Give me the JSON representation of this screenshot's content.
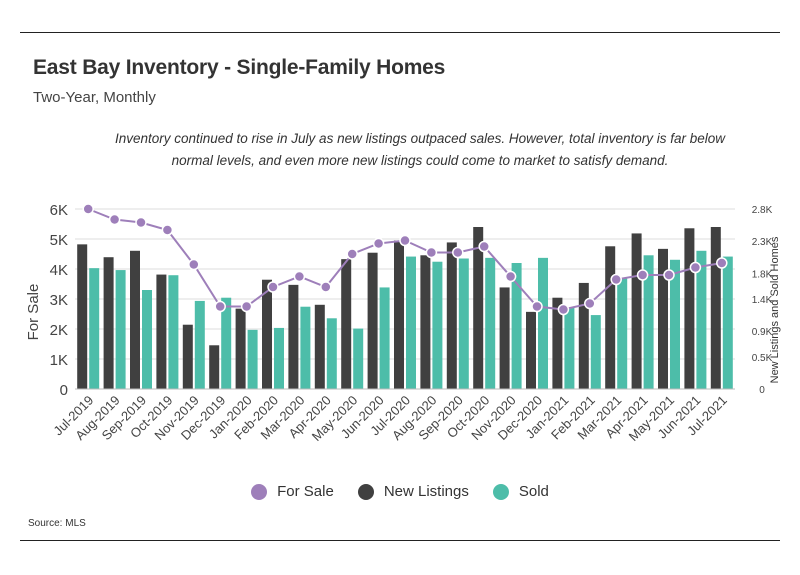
{
  "header": {
    "title": "East Bay Inventory - Single-Family Homes",
    "subtitle": "Two-Year, Monthly",
    "note": "Inventory continued to rise in July as new listings outpaced sales. However, total inventory is far below normal levels, and even more new listings could come to market to satisfy demand."
  },
  "footer": {
    "source": "Source:  MLS"
  },
  "colors": {
    "for_sale": "#9e7fba",
    "new_listings": "#404040",
    "sold": "#4dbda9",
    "grid": "#dddddd"
  },
  "chart_data": {
    "type": "bar",
    "categories": [
      "Jul-2019",
      "Aug-2019",
      "Sep-2019",
      "Oct-2019",
      "Nov-2019",
      "Dec-2019",
      "Jan-2020",
      "Feb-2020",
      "Mar-2020",
      "Apr-2020",
      "May-2020",
      "Jun-2020",
      "Jul-2020",
      "Aug-2020",
      "Sep-2020",
      "Oct-2020",
      "Nov-2020",
      "Dec-2020",
      "Jan-2021",
      "Feb-2021",
      "Mar-2021",
      "Apr-2021",
      "May-2021",
      "Jun-2021",
      "Jul-2021"
    ],
    "left_axis": {
      "label": "For Sale",
      "ticks": [
        "6K",
        "5K",
        "4K",
        "3K",
        "2K",
        "1K",
        "0"
      ],
      "ylim": [
        0,
        6300
      ]
    },
    "right_axis": {
      "label": "New Listings and Sold Homes",
      "ticks": [
        "2.8K",
        "2.3K",
        "1.8K",
        "1.4K",
        "0.9K",
        "0.5K",
        "0"
      ],
      "ylim": [
        0,
        2940
      ]
    },
    "series": [
      {
        "name": "For Sale",
        "type": "line",
        "axis": "left",
        "values": [
          6000,
          5650,
          5550,
          5300,
          4150,
          2750,
          2750,
          3400,
          3750,
          3400,
          4500,
          4850,
          4950,
          4550,
          4550,
          4750,
          3750,
          2750,
          2650,
          2850,
          3650,
          3800,
          3800,
          4050,
          4200
        ]
      },
      {
        "name": "New Listings",
        "type": "bar",
        "axis": "right",
        "values": [
          2250,
          2050,
          2150,
          1780,
          1000,
          680,
          1250,
          1700,
          1620,
          1310,
          2020,
          2120,
          2310,
          2080,
          2280,
          2520,
          1580,
          1200,
          1420,
          1650,
          2220,
          2420,
          2180,
          2500,
          2520
        ]
      },
      {
        "name": "Sold",
        "type": "bar",
        "axis": "right",
        "values": [
          1880,
          1850,
          1540,
          1770,
          1370,
          1420,
          920,
          950,
          1280,
          1100,
          940,
          1580,
          2060,
          1980,
          2030,
          2040,
          1960,
          2040,
          1270,
          1150,
          1720,
          2080,
          2010,
          2150,
          2060
        ]
      }
    ],
    "legend": {
      "position": "bottom"
    },
    "grid": true
  }
}
